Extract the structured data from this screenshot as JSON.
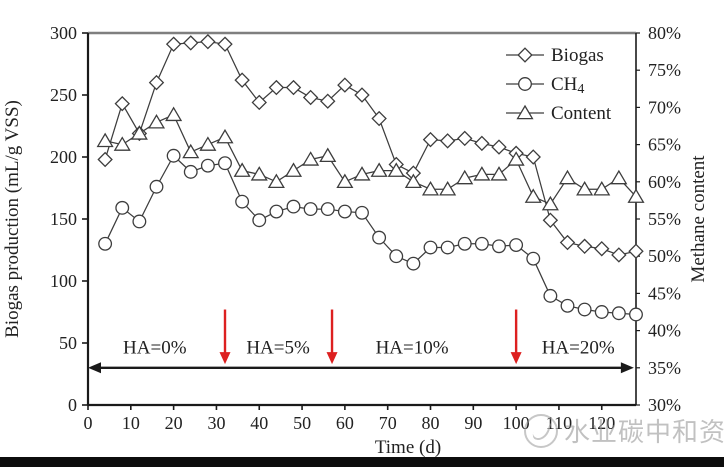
{
  "watermark": {
    "text": "水业碳中和资讯",
    "icon": "water-drop-logo"
  },
  "chart_data": {
    "type": "line",
    "title": "",
    "xlabel": "Time (d)",
    "ylabel_left": "Biogas production (mL/g  VSS)",
    "ylabel_right": "Methane content",
    "xlim": [
      0,
      128
    ],
    "ylim_left": [
      0,
      300
    ],
    "ylim_right": [
      30,
      80
    ],
    "x_ticks": [
      0,
      10,
      20,
      30,
      40,
      50,
      60,
      70,
      80,
      90,
      100,
      110,
      120
    ],
    "y_ticks_left": [
      0,
      50,
      100,
      150,
      200,
      250,
      300
    ],
    "y_ticks_right": [
      30,
      35,
      40,
      45,
      50,
      55,
      60,
      65,
      70,
      75,
      80
    ],
    "grid": false,
    "legend_position": "top-right-inside",
    "x": [
      4,
      8,
      12,
      16,
      20,
      24,
      28,
      32,
      36,
      40,
      44,
      48,
      52,
      56,
      60,
      64,
      68,
      72,
      76,
      80,
      84,
      88,
      92,
      96,
      100,
      104,
      108,
      112,
      116,
      120,
      124,
      128
    ],
    "series": [
      {
        "name": "Biogas",
        "legend_label": "Biogas",
        "legend_sub": "",
        "axis": "left",
        "marker": "diamond",
        "values": [
          198,
          243,
          219,
          260,
          291,
          292,
          293,
          291,
          262,
          244,
          256,
          256,
          248,
          245,
          258,
          250,
          231,
          194,
          187,
          214,
          213,
          215,
          211,
          208,
          203,
          200,
          149,
          131,
          128,
          126,
          121,
          124
        ]
      },
      {
        "name": "CH4",
        "legend_label": "CH",
        "legend_sub": "4",
        "axis": "left",
        "marker": "circle",
        "values": [
          130,
          159,
          148,
          176,
          201,
          188,
          193,
          195,
          164,
          149,
          156,
          160,
          158,
          158,
          156,
          155,
          135,
          120,
          114,
          127,
          127,
          130,
          130,
          128,
          129,
          118,
          88,
          80,
          77,
          75,
          74,
          73
        ]
      },
      {
        "name": "Content",
        "legend_label": "Content",
        "legend_sub": "",
        "axis": "right",
        "marker": "triangle",
        "values": [
          65.5,
          65,
          66.5,
          68,
          69,
          64,
          65,
          66,
          61.5,
          61,
          60,
          61.5,
          63,
          63.5,
          60,
          61,
          61.5,
          61.5,
          60,
          59,
          59,
          60.5,
          61,
          61,
          63,
          58,
          57,
          60.5,
          59,
          59,
          60.5,
          58
        ]
      }
    ],
    "annotations": {
      "phase_labels": [
        {
          "text": "HA=0%",
          "x_day": 15.6,
          "y_value": 46.5
        },
        {
          "text": "HA=5%",
          "x_day": 44.4,
          "y_value": 46.5
        },
        {
          "text": "HA=10%",
          "x_day": 75.7,
          "y_value": 46.5
        },
        {
          "text": "HA=20%",
          "x_day": 114.5,
          "y_value": 46.5
        }
      ],
      "red_arrows": [
        {
          "x_day": 32
        },
        {
          "x_day": 57
        },
        {
          "x_day": 100
        }
      ],
      "red_arrow_y_from_value": 77,
      "red_arrow_y_to_value": 33,
      "double_arrow": {
        "x_from_day": 0,
        "x_to_day": 127.5,
        "y_value": 30
      }
    },
    "colors": {
      "series_stroke": "#3d3d3d",
      "axis": "#1a1a1a",
      "top_border": "#7f7f7f",
      "red_arrow": "#dd2020",
      "text": "#222222",
      "watermark": "#8f8f8f",
      "bottom_bar": "#0d0d0d",
      "marker_fill": "#ffffff"
    }
  }
}
